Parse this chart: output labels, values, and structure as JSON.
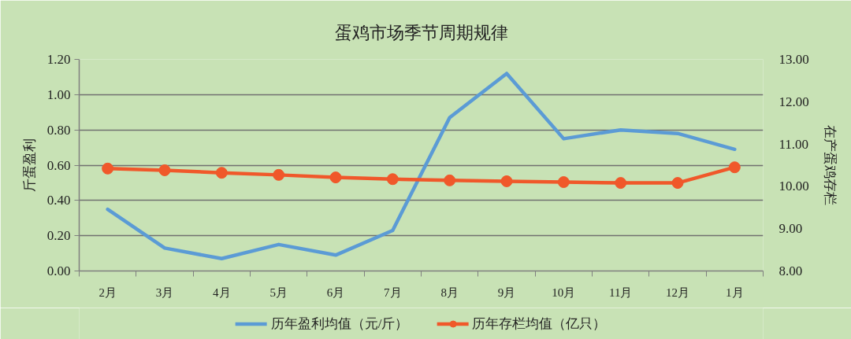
{
  "chart_data": {
    "type": "line",
    "title": "蛋鸡市场季节周期规律",
    "ylabel": "斤蛋盈利",
    "y2label": "在产蛋鸡存栏",
    "categories": [
      "2月",
      "3月",
      "4月",
      "5月",
      "6月",
      "7月",
      "8月",
      "9月",
      "10月",
      "11月",
      "12月",
      "1月"
    ],
    "series": [
      {
        "name": "历年盈利均值（元/斤）",
        "color": "#5b9bd5",
        "values": [
          0.35,
          0.13,
          0.07,
          0.15,
          0.09,
          0.23,
          0.87,
          1.12,
          0.75,
          0.8,
          0.78,
          0.69
        ]
      },
      {
        "name": "历年存栏均值（亿只）",
        "color": "#f0582a",
        "axis": "y2",
        "marker": "circle",
        "values": [
          10.42,
          10.38,
          10.32,
          10.27,
          10.21,
          10.17,
          10.14,
          10.12,
          10.1,
          10.08,
          10.08,
          10.45
        ]
      }
    ],
    "ylim": [
      0,
      1.2
    ],
    "yticks": [
      {
        "value": 0,
        "label": "0.00"
      },
      {
        "value": 0.2,
        "label": "0.20"
      },
      {
        "value": 0.4,
        "label": "0.40"
      },
      {
        "value": 0.6,
        "label": "0.60"
      },
      {
        "value": 0.8,
        "label": "0.80"
      },
      {
        "value": 1,
        "label": "1.00"
      },
      {
        "value": 1.2,
        "label": "1.20"
      }
    ],
    "y2lim": [
      8,
      13
    ],
    "y2ticks": [
      {
        "value": 8,
        "label": "8.00"
      },
      {
        "value": 9,
        "label": "9.00"
      },
      {
        "value": 10,
        "label": "10.00"
      },
      {
        "value": 11,
        "label": "11.00"
      },
      {
        "value": 12,
        "label": "12.00"
      },
      {
        "value": 13,
        "label": "13.00"
      }
    ],
    "grid": "y",
    "legend": "bottom"
  }
}
